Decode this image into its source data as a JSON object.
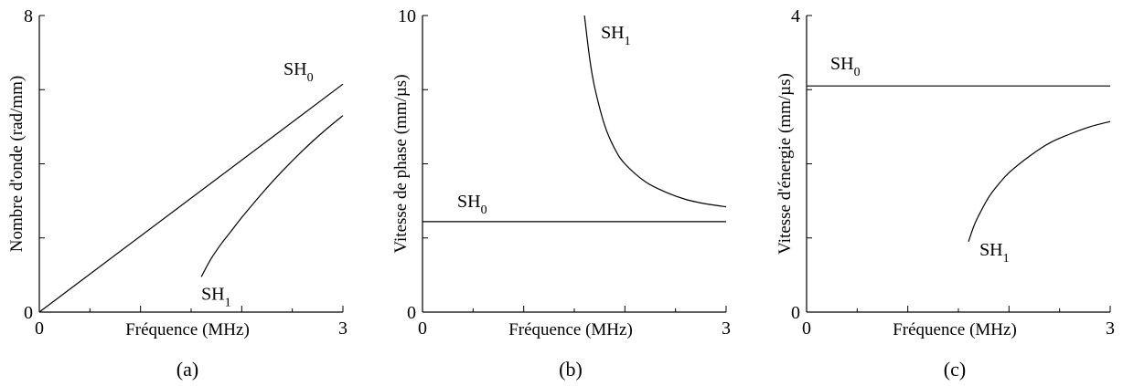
{
  "chart_data": [
    {
      "type": "line",
      "caption": "(a)",
      "xlabel": "Fréquence (MHz)",
      "ylabel": "Nombre d'onde (rad/mm)",
      "xlim": [
        0,
        3
      ],
      "ylim": [
        0,
        8
      ],
      "x_ticks": [
        "0",
        "3"
      ],
      "y_ticks": [
        "0",
        "8"
      ],
      "series": [
        {
          "name": "SH0",
          "label_main": "SH",
          "label_sub": "0",
          "points": [
            [
              0,
              0
            ],
            [
              3,
              6.15
            ]
          ]
        },
        {
          "name": "SH1",
          "label_main": "SH",
          "label_sub": "1",
          "points": [
            [
              1.6,
              0.95
            ],
            [
              1.7,
              1.45
            ],
            [
              1.8,
              1.85
            ],
            [
              1.9,
              2.2
            ],
            [
              2.0,
              2.55
            ],
            [
              2.2,
              3.2
            ],
            [
              2.4,
              3.8
            ],
            [
              2.6,
              4.35
            ],
            [
              2.8,
              4.85
            ],
            [
              3.0,
              5.3
            ]
          ]
        }
      ]
    },
    {
      "type": "line",
      "caption": "(b)",
      "xlabel": "Fréquence (MHz)",
      "ylabel": "Vitesse de phase (mm/µs)",
      "xlim": [
        0,
        3
      ],
      "ylim": [
        0,
        10
      ],
      "x_ticks": [
        "0",
        "3"
      ],
      "y_ticks": [
        "0",
        "10"
      ],
      "series": [
        {
          "name": "SH0",
          "label_main": "SH",
          "label_sub": "0",
          "points": [
            [
              0,
              3.05
            ],
            [
              3,
              3.05
            ]
          ]
        },
        {
          "name": "SH1",
          "label_main": "SH",
          "label_sub": "1",
          "points": [
            [
              1.6,
              10.0
            ],
            [
              1.65,
              8.6
            ],
            [
              1.7,
              7.6
            ],
            [
              1.8,
              6.3
            ],
            [
              1.9,
              5.5
            ],
            [
              2.0,
              5.0
            ],
            [
              2.2,
              4.4
            ],
            [
              2.4,
              4.05
            ],
            [
              2.6,
              3.8
            ],
            [
              2.8,
              3.65
            ],
            [
              3.0,
              3.55
            ]
          ]
        }
      ]
    },
    {
      "type": "line",
      "caption": "(c)",
      "xlabel": "Fréquence (MHz)",
      "ylabel": "Vitesse d'énergie (mm/µs)",
      "xlim": [
        0,
        3
      ],
      "ylim": [
        0,
        4
      ],
      "x_ticks": [
        "0",
        "3"
      ],
      "y_ticks": [
        "0",
        "4"
      ],
      "series": [
        {
          "name": "SH0",
          "label_main": "SH",
          "label_sub": "0",
          "points": [
            [
              0,
              3.05
            ],
            [
              3,
              3.05
            ]
          ]
        },
        {
          "name": "SH1",
          "label_main": "SH",
          "label_sub": "1",
          "points": [
            [
              1.6,
              0.95
            ],
            [
              1.65,
              1.15
            ],
            [
              1.7,
              1.3
            ],
            [
              1.8,
              1.55
            ],
            [
              1.9,
              1.73
            ],
            [
              2.0,
              1.88
            ],
            [
              2.2,
              2.1
            ],
            [
              2.4,
              2.28
            ],
            [
              2.6,
              2.4
            ],
            [
              2.8,
              2.5
            ],
            [
              3.0,
              2.57
            ]
          ]
        }
      ]
    }
  ]
}
